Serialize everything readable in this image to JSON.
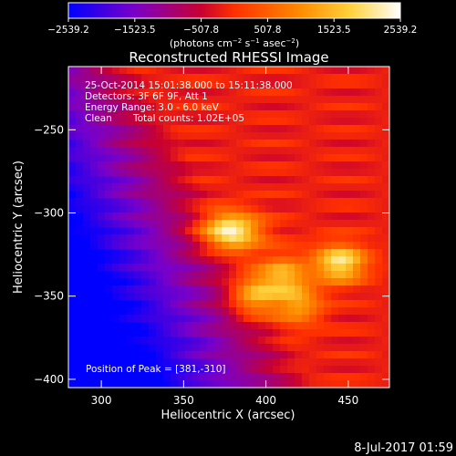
{
  "colorbar": {
    "tick_labels": [
      "−2539.2",
      "−1523.5",
      "−507.8",
      "507.8",
      "1523.5",
      "2539.2"
    ],
    "tick_values": [
      -2539.2,
      -1523.5,
      -507.8,
      507.8,
      1523.5,
      2539.2
    ],
    "range": [
      -2539.2,
      2539.2
    ],
    "unit_parts": {
      "a": "(photons cm",
      "b": "−2",
      "c": " s",
      "d": "−1",
      "e": " asec",
      "f": "−2",
      "g": ")"
    },
    "colors": [
      "#0000ff",
      "#7a00c8",
      "#c80030",
      "#ff3000",
      "#ff8c00",
      "#ffd23c",
      "#ffffff"
    ]
  },
  "info": {
    "time": "25-Oct-2014 15:01:38.000 to 15:11:38.000",
    "detectors": "Detectors: 3F 6F 9F, Att 1",
    "energy": "Energy Range: 3.0 - 6.0 keV",
    "clean": "Clean",
    "counts": "Total counts: 1.02E+05",
    "peak": "Position of Peak = [381,-310]"
  },
  "footer": {
    "date": "8-Jul-2017 01:59"
  },
  "chart_data": {
    "type": "heatmap",
    "title": "Reconstructed RHESSI Image",
    "xlabel": "Heliocentric X (arcsec)",
    "ylabel": "Heliocentric Y (arcsec)",
    "xlim": [
      280,
      475
    ],
    "ylim": [
      -405,
      -212
    ],
    "xticks": [
      300,
      350,
      400,
      450
    ],
    "xtick_labels": [
      "300",
      "350",
      "400",
      "450"
    ],
    "yticks": [
      -250,
      -300,
      -350,
      -400
    ],
    "ytick_labels": [
      "−250",
      "−300",
      "−350",
      "−400"
    ],
    "peak_position": [
      381,
      -310
    ],
    "sources": [
      {
        "x": 378,
        "y": -311,
        "intensity": 2539
      },
      {
        "x": 445,
        "y": -330,
        "intensity": 2300
      },
      {
        "x": 410,
        "y": -338,
        "intensity": 1500
      },
      {
        "x": 392,
        "y": -350,
        "intensity": 1600
      },
      {
        "x": 420,
        "y": -355,
        "intensity": 1300
      }
    ]
  }
}
